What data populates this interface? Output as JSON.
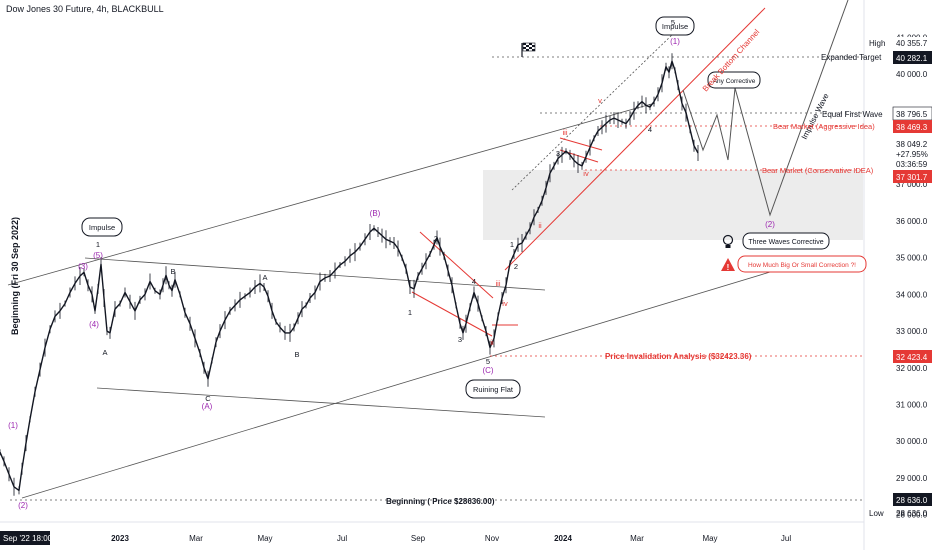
{
  "header": {
    "title": "Dow Jones 30 Future, 4h, BLACKBULL"
  },
  "chart_data": {
    "type": "line",
    "ylabel": "Beginning (Fri 30 Sep 2022)",
    "ylim": [
      27800,
      41800
    ],
    "y_ticks": [
      "28 000.0",
      "29 000.0",
      "30 000.0",
      "31 000.0",
      "32 000.0",
      "33 000.0",
      "34 000.0",
      "35 000.0",
      "36 000.0",
      "37 000.0",
      "38 000.0",
      "39 000.0",
      "40 000.0",
      "41 000.0"
    ],
    "x_ticks": [
      "2023",
      "Mar",
      "May",
      "Jul",
      "Sep",
      "Nov",
      "2024",
      "Mar",
      "May",
      "Jul"
    ],
    "cursor_label": "Sep '22  18:00",
    "series": [
      {
        "values": [
          [
            0,
            29700
          ],
          [
            4,
            29450
          ],
          [
            9,
            29100
          ],
          [
            14,
            28760
          ],
          [
            19,
            28660
          ],
          [
            22,
            29250
          ],
          [
            26,
            29950
          ],
          [
            30,
            30600
          ],
          [
            35,
            31350
          ],
          [
            40,
            31950
          ],
          [
            45,
            32550
          ],
          [
            50,
            33050
          ],
          [
            55,
            33400
          ],
          [
            60,
            33550
          ],
          [
            65,
            33750
          ],
          [
            70,
            34050
          ],
          [
            75,
            34300
          ],
          [
            80,
            34500
          ],
          [
            84,
            34600
          ],
          [
            88,
            34250
          ],
          [
            92,
            34000
          ],
          [
            95,
            33550
          ],
          [
            98,
            34150
          ],
          [
            101,
            34820
          ],
          [
            104,
            33900
          ],
          [
            107,
            33000
          ],
          [
            110,
            32950
          ],
          [
            115,
            33600
          ],
          [
            120,
            33750
          ],
          [
            125,
            34050
          ],
          [
            130,
            33800
          ],
          [
            135,
            33550
          ],
          [
            140,
            33850
          ],
          [
            145,
            34000
          ],
          [
            150,
            34350
          ],
          [
            155,
            34100
          ],
          [
            160,
            34000
          ],
          [
            163,
            34250
          ],
          [
            166,
            34520
          ],
          [
            169,
            34250
          ],
          [
            172,
            34100
          ],
          [
            175,
            34400
          ],
          [
            180,
            34000
          ],
          [
            185,
            33500
          ],
          [
            190,
            33200
          ],
          [
            195,
            32800
          ],
          [
            200,
            32400
          ],
          [
            204,
            32000
          ],
          [
            208,
            31700
          ],
          [
            212,
            32200
          ],
          [
            216,
            32700
          ],
          [
            220,
            33000
          ],
          [
            225,
            33300
          ],
          [
            230,
            33550
          ],
          [
            235,
            33700
          ],
          [
            240,
            33850
          ],
          [
            245,
            33950
          ],
          [
            250,
            34050
          ],
          [
            255,
            34200
          ],
          [
            260,
            34300
          ],
          [
            264,
            34200
          ],
          [
            268,
            33950
          ],
          [
            272,
            33550
          ],
          [
            276,
            33250
          ],
          [
            280,
            33100
          ],
          [
            285,
            32950
          ],
          [
            290,
            32950
          ],
          [
            294,
            33100
          ],
          [
            298,
            33350
          ],
          [
            302,
            33600
          ],
          [
            306,
            33700
          ],
          [
            310,
            33900
          ],
          [
            315,
            34050
          ],
          [
            320,
            34350
          ],
          [
            325,
            34450
          ],
          [
            330,
            34500
          ],
          [
            335,
            34650
          ],
          [
            340,
            34800
          ],
          [
            345,
            34900
          ],
          [
            350,
            35050
          ],
          [
            355,
            35150
          ],
          [
            360,
            35300
          ],
          [
            365,
            35500
          ],
          [
            370,
            35700
          ],
          [
            374,
            35800
          ],
          [
            378,
            35700
          ],
          [
            382,
            35600
          ],
          [
            386,
            35500
          ],
          [
            390,
            35450
          ],
          [
            394,
            35400
          ],
          [
            398,
            35250
          ],
          [
            402,
            35000
          ],
          [
            406,
            34700
          ],
          [
            410,
            34200
          ],
          [
            414,
            34150
          ],
          [
            418,
            34500
          ],
          [
            422,
            34700
          ],
          [
            426,
            34900
          ],
          [
            430,
            35100
          ],
          [
            434,
            35350
          ],
          [
            437,
            35550
          ],
          [
            440,
            35300
          ],
          [
            444,
            35050
          ],
          [
            448,
            34650
          ],
          [
            452,
            34250
          ],
          [
            456,
            33700
          ],
          [
            460,
            33200
          ],
          [
            463,
            32950
          ],
          [
            466,
            33200
          ],
          [
            470,
            33650
          ],
          [
            474,
            34050
          ],
          [
            478,
            33750
          ],
          [
            482,
            33350
          ],
          [
            486,
            33000
          ],
          [
            490,
            32550
          ],
          [
            494,
            32800
          ],
          [
            498,
            33400
          ],
          [
            502,
            33900
          ],
          [
            506,
            34250
          ],
          [
            510,
            34850
          ],
          [
            514,
            35100
          ],
          [
            518,
            35350
          ],
          [
            522,
            35400
          ],
          [
            526,
            35600
          ],
          [
            530,
            35800
          ],
          [
            534,
            36100
          ],
          [
            538,
            36300
          ],
          [
            542,
            36550
          ],
          [
            546,
            36900
          ],
          [
            550,
            37300
          ],
          [
            554,
            37500
          ],
          [
            558,
            37700
          ],
          [
            562,
            37800
          ],
          [
            566,
            37900
          ],
          [
            570,
            37800
          ],
          [
            574,
            37650
          ],
          [
            578,
            37550
          ],
          [
            582,
            37500
          ],
          [
            586,
            37750
          ],
          [
            590,
            38000
          ],
          [
            594,
            38250
          ],
          [
            598,
            38450
          ],
          [
            602,
            38550
          ],
          [
            606,
            38650
          ],
          [
            610,
            38750
          ],
          [
            614,
            38800
          ],
          [
            618,
            38750
          ],
          [
            622,
            38700
          ],
          [
            626,
            38650
          ],
          [
            630,
            38800
          ],
          [
            634,
            39000
          ],
          [
            638,
            39150
          ],
          [
            642,
            39250
          ],
          [
            646,
            39150
          ],
          [
            650,
            39100
          ],
          [
            654,
            39250
          ],
          [
            658,
            39450
          ],
          [
            662,
            39750
          ],
          [
            666,
            40200
          ],
          [
            669,
            40050
          ],
          [
            672,
            40350
          ],
          [
            675,
            40100
          ],
          [
            678,
            39700
          ],
          [
            682,
            39200
          ],
          [
            686,
            38950
          ],
          [
            690,
            38500
          ],
          [
            694,
            38050
          ],
          [
            698,
            37850
          ]
        ]
      }
    ]
  },
  "labels": {
    "impulse_top": "Impulse",
    "impulse_left": "Impulse",
    "ruining_flat": "Ruining Flat",
    "any_corrective": "Any Corrective",
    "three_waves": "Three Waves Corrective",
    "how_much": "How Much Big Or Small Correction ?!",
    "break_channel": "Break Bottom Channel",
    "impulse_wave": "Impulse Wave",
    "expanded_target": "Expanded Target",
    "equal_first_wave": "Equal First Wave",
    "bear_aggressive": "Bear Market (Aggressive Idea)",
    "bear_conservative": "Bear Market (Conservative IDEA)",
    "price_invalidation": "Price Invalidation Analysis ($32423.36)",
    "beginning": "Beginning ( Price $28636.00)"
  },
  "price_tags": {
    "high_label": "High",
    "high": "40 355.7",
    "expanded": "40 282.1",
    "equal_first": "38 796.5",
    "aggressive": "38 469.3",
    "last": "38 049.2",
    "change": "+27.95%",
    "countdown": "03:36:59",
    "conservative": "37 301.7",
    "invalidation": "32 423.4",
    "beginning": "28 636.0",
    "low_label": "Low",
    "low": "28 636.0"
  },
  "waves": {
    "w1_paren": "(1)",
    "w2_paren": "(2)",
    "w3_paren": "(3)",
    "w4_paren": "(4)",
    "w5_paren": "(5)",
    "A_paren": "(A)",
    "B_paren": "(B)",
    "C_paren": "(C)",
    "A": "A",
    "B": "B",
    "C": "C",
    "n1": "1",
    "n2": "2",
    "n3": "3",
    "n4": "4",
    "n5": "5",
    "i": "i",
    "ii": "ii",
    "iii": "iii",
    "iv": "iv",
    "v": "v"
  },
  "colors": {
    "accent_red": "#e53935",
    "wave_purple": "#9c27b0",
    "candle": "#131722"
  }
}
